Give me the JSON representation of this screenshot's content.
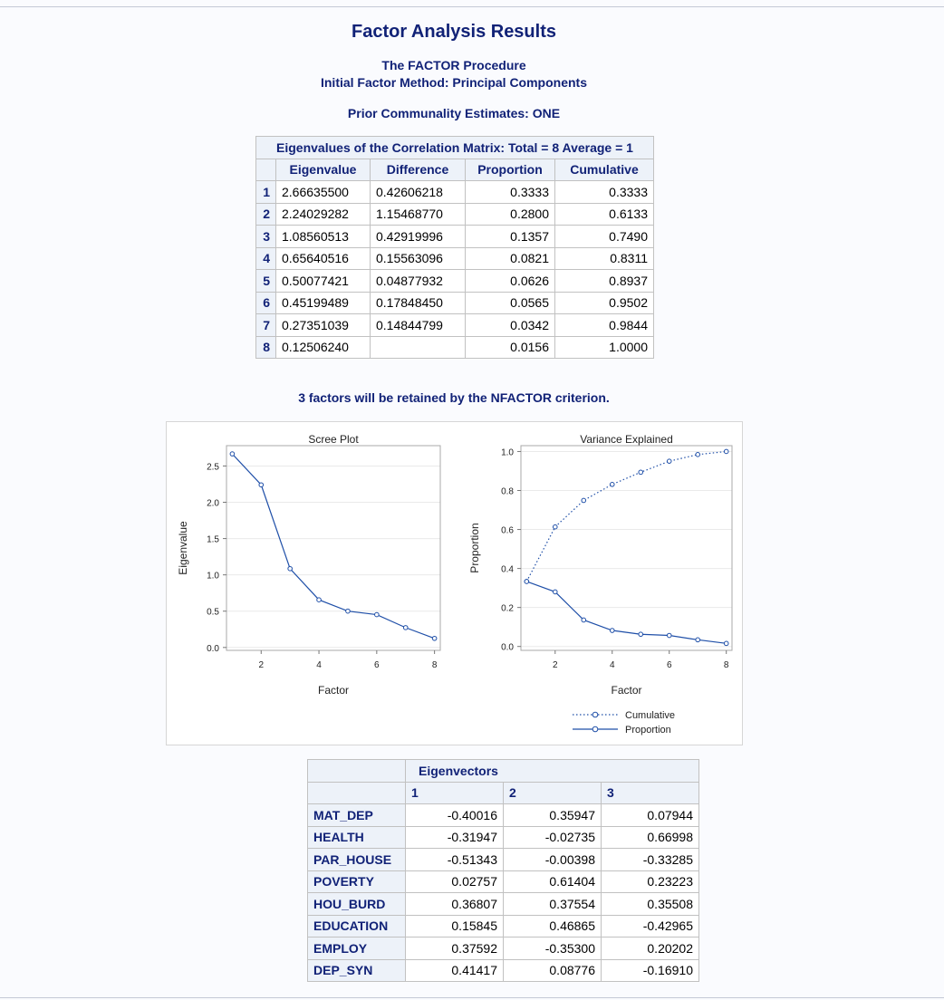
{
  "titles": {
    "main": "Factor Analysis Results",
    "procedure": "The FACTOR Procedure",
    "method": "Initial Factor Method: Principal Components",
    "prior": "Prior Communality Estimates: ONE",
    "retained_note": "3 factors will be retained by the NFACTOR criterion."
  },
  "eigen_table": {
    "caption": "Eigenvalues of the Correlation Matrix: Total = 8 Average = 1",
    "headers": [
      "Eigenvalue",
      "Difference",
      "Proportion",
      "Cumulative"
    ],
    "rows": [
      {
        "idx": "1",
        "eig": "2.66635500",
        "diff": "0.42606218",
        "prop": "0.3333",
        "cum": "0.3333"
      },
      {
        "idx": "2",
        "eig": "2.24029282",
        "diff": "1.15468770",
        "prop": "0.2800",
        "cum": "0.6133"
      },
      {
        "idx": "3",
        "eig": "1.08560513",
        "diff": "0.42919996",
        "prop": "0.1357",
        "cum": "0.7490"
      },
      {
        "idx": "4",
        "eig": "0.65640516",
        "diff": "0.15563096",
        "prop": "0.0821",
        "cum": "0.8311"
      },
      {
        "idx": "5",
        "eig": "0.50077421",
        "diff": "0.04877932",
        "prop": "0.0626",
        "cum": "0.8937"
      },
      {
        "idx": "6",
        "eig": "0.45199489",
        "diff": "0.17848450",
        "prop": "0.0565",
        "cum": "0.9502"
      },
      {
        "idx": "7",
        "eig": "0.27351039",
        "diff": "0.14844799",
        "prop": "0.0342",
        "cum": "0.9844"
      },
      {
        "idx": "8",
        "eig": "0.12506240",
        "diff": "",
        "prop": "0.0156",
        "cum": "1.0000"
      }
    ]
  },
  "eigenvectors": {
    "caption": "Eigenvectors",
    "headers": [
      "1",
      "2",
      "3"
    ],
    "rows": [
      {
        "name": "MAT_DEP",
        "v1": "-0.40016",
        "v2": "0.35947",
        "v3": "0.07944"
      },
      {
        "name": "HEALTH",
        "v1": "-0.31947",
        "v2": "-0.02735",
        "v3": "0.66998"
      },
      {
        "name": "PAR_HOUSE",
        "v1": "-0.51343",
        "v2": "-0.00398",
        "v3": "-0.33285"
      },
      {
        "name": "POVERTY",
        "v1": "0.02757",
        "v2": "0.61404",
        "v3": "0.23223"
      },
      {
        "name": "HOU_BURD",
        "v1": "0.36807",
        "v2": "0.37554",
        "v3": "0.35508"
      },
      {
        "name": "EDUCATION",
        "v1": "0.15845",
        "v2": "0.46865",
        "v3": "-0.42965"
      },
      {
        "name": "EMPLOY",
        "v1": "0.37592",
        "v2": "-0.35300",
        "v3": "0.20202"
      },
      {
        "name": "DEP_SYN",
        "v1": "0.41417",
        "v2": "0.08776",
        "v3": "-0.16910"
      }
    ]
  },
  "chart_data": [
    {
      "type": "line",
      "title": "Scree Plot",
      "xlabel": "Factor",
      "ylabel": "Eigenvalue",
      "x": [
        1,
        2,
        3,
        4,
        5,
        6,
        7,
        8
      ],
      "series": [
        {
          "values": [
            2.666355,
            2.24029282,
            1.08560513,
            0.65640516,
            0.50077421,
            0.45199489,
            0.27351039,
            0.1250624
          ],
          "style": "solid"
        }
      ],
      "xticks": [
        "2",
        "4",
        "6",
        "8"
      ],
      "yticks": [
        "0.0",
        "0.5",
        "1.0",
        "1.5",
        "2.0",
        "2.5"
      ],
      "xlim": [
        0.8,
        8.2
      ],
      "ylim": [
        -0.04,
        2.78
      ],
      "grid": true,
      "color": "#1f4fa8"
    },
    {
      "type": "line",
      "title": "Variance Explained",
      "xlabel": "Factor",
      "ylabel": "Proportion",
      "x": [
        1,
        2,
        3,
        4,
        5,
        6,
        7,
        8
      ],
      "series": [
        {
          "name": "Cumulative",
          "values": [
            0.3333,
            0.6133,
            0.749,
            0.8311,
            0.8937,
            0.9502,
            0.9844,
            1.0
          ],
          "style": "dotted"
        },
        {
          "name": "Proportion",
          "values": [
            0.3333,
            0.28,
            0.1357,
            0.0821,
            0.0626,
            0.0565,
            0.0342,
            0.0156
          ],
          "style": "solid"
        }
      ],
      "xticks": [
        "2",
        "4",
        "6",
        "8"
      ],
      "yticks": [
        "0.0",
        "0.2",
        "0.4",
        "0.6",
        "0.8",
        "1.0"
      ],
      "xlim": [
        0.8,
        8.2
      ],
      "ylim": [
        -0.02,
        1.03
      ],
      "grid": true,
      "legend": "bottom",
      "color": "#1f4fa8"
    }
  ]
}
